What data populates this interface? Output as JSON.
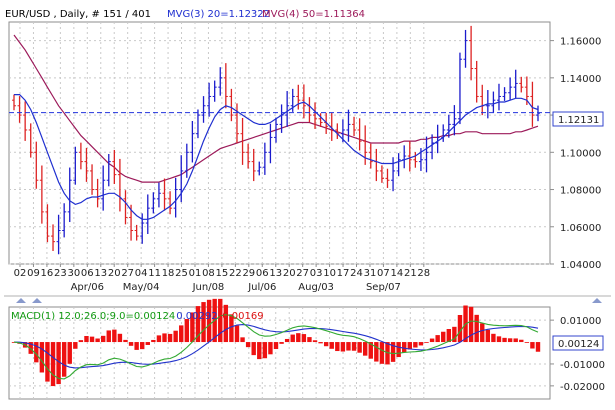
{
  "colors": {
    "up_bar": "#1b1bcc",
    "down_bar": "#dd2222",
    "mvg3": "#1f2fd0",
    "mvg4": "#9c1a5a",
    "current_line": "#2233dd",
    "macd_line": "#33aa33",
    "signal_line": "#2233cc",
    "histogram": "#ee1111",
    "frame": "#8e8e8e",
    "panel_border": "#3344cc"
  },
  "chart_data": [
    {
      "type": "ohlc",
      "title": {
        "symbol": "EUR/USD , Daily, # 151 / 401",
        "mvg3": "MVG(3) 20=1.12322",
        "mvg4": "MVG(4) 50=1.11364"
      },
      "ylim": [
        1.04,
        1.17
      ],
      "y_ticks": [
        "1.16000",
        "1.14000",
        "1.12000",
        "1.10000",
        "1.08000",
        "1.06000",
        "1.04000"
      ],
      "y_tick_values": [
        1.16,
        1.14,
        1.12,
        1.1,
        1.08,
        1.06,
        1.04
      ],
      "current_value_label": "1.12131",
      "current_value": 1.12131,
      "day_labels": [
        "02",
        "09",
        "16",
        "23",
        "30",
        "06",
        "13",
        "20",
        "27",
        "04",
        "11",
        "18",
        "25",
        "01",
        "08",
        "15",
        "22",
        "29",
        "06",
        "13",
        "20",
        "27",
        "03",
        "10",
        "17",
        "24",
        "31",
        "07",
        "14",
        "21",
        "28"
      ],
      "month_labels": [
        {
          "label": "Apr/06",
          "day_index": 5
        },
        {
          "label": "May/04",
          "day_index": 9
        },
        {
          "label": "Jun/08",
          "day_index": 14
        },
        {
          "label": "Jul/06",
          "day_index": 18
        },
        {
          "label": "Aug/03",
          "day_index": 22
        },
        {
          "label": "Sep/07",
          "day_index": 27
        }
      ],
      "close": [
        1.125,
        1.12,
        1.112,
        1.1,
        1.085,
        1.068,
        1.055,
        1.052,
        1.058,
        1.068,
        1.085,
        1.1,
        1.095,
        1.09,
        1.08,
        1.075,
        1.085,
        1.095,
        1.088,
        1.075,
        1.065,
        1.058,
        1.055,
        1.062,
        1.07,
        1.075,
        1.078,
        1.075,
        1.07,
        1.08,
        1.09,
        1.1,
        1.11,
        1.12,
        1.125,
        1.13,
        1.135,
        1.14,
        1.13,
        1.12,
        1.11,
        1.1,
        1.095,
        1.09,
        1.092,
        1.1,
        1.108,
        1.115,
        1.12,
        1.125,
        1.13,
        1.128,
        1.125,
        1.12,
        1.118,
        1.116,
        1.114,
        1.112,
        1.11,
        1.112,
        1.115,
        1.112,
        1.106,
        1.1,
        1.095,
        1.09,
        1.086,
        1.085,
        1.09,
        1.096,
        1.098,
        1.096,
        1.095,
        1.096,
        1.1,
        1.105,
        1.108,
        1.112,
        1.115,
        1.118,
        1.15,
        1.16,
        1.145,
        1.13,
        1.125,
        1.125,
        1.128,
        1.13,
        1.132,
        1.135,
        1.137,
        1.135,
        1.13,
        1.12,
        1.121
      ],
      "mvg3_20": [
        1.131,
        1.131,
        1.128,
        1.123,
        1.116,
        1.108,
        1.1,
        1.092,
        1.084,
        1.078,
        1.074,
        1.072,
        1.073,
        1.075,
        1.076,
        1.076,
        1.077,
        1.078,
        1.078,
        1.076,
        1.073,
        1.069,
        1.066,
        1.064,
        1.064,
        1.065,
        1.067,
        1.069,
        1.071,
        1.074,
        1.078,
        1.083,
        1.09,
        1.098,
        1.106,
        1.113,
        1.119,
        1.123,
        1.125,
        1.124,
        1.122,
        1.12,
        1.118,
        1.116,
        1.115,
        1.115,
        1.116,
        1.118,
        1.12,
        1.122,
        1.124,
        1.126,
        1.127,
        1.125,
        1.122,
        1.119,
        1.116,
        1.113,
        1.11,
        1.107,
        1.104,
        1.101,
        1.099,
        1.097,
        1.096,
        1.095,
        1.094,
        1.094,
        1.094,
        1.095,
        1.096,
        1.097,
        1.098,
        1.1,
        1.102,
        1.104,
        1.106,
        1.108,
        1.111,
        1.114,
        1.117,
        1.12,
        1.122,
        1.124,
        1.125,
        1.126,
        1.126,
        1.127,
        1.127,
        1.128,
        1.129,
        1.129,
        1.128,
        1.124,
        1.123
      ],
      "mvg4_50": [
        1.163,
        1.159,
        1.155,
        1.15,
        1.145,
        1.14,
        1.135,
        1.13,
        1.125,
        1.121,
        1.117,
        1.113,
        1.109,
        1.106,
        1.103,
        1.1,
        1.097,
        1.094,
        1.092,
        1.089,
        1.087,
        1.086,
        1.085,
        1.084,
        1.084,
        1.084,
        1.084,
        1.085,
        1.086,
        1.087,
        1.088,
        1.09,
        1.092,
        1.094,
        1.096,
        1.098,
        1.1,
        1.102,
        1.103,
        1.104,
        1.105,
        1.106,
        1.107,
        1.108,
        1.109,
        1.11,
        1.111,
        1.112,
        1.113,
        1.114,
        1.115,
        1.116,
        1.116,
        1.116,
        1.115,
        1.114,
        1.113,
        1.112,
        1.111,
        1.11,
        1.109,
        1.108,
        1.107,
        1.106,
        1.105,
        1.105,
        1.105,
        1.105,
        1.105,
        1.105,
        1.106,
        1.106,
        1.106,
        1.107,
        1.107,
        1.108,
        1.108,
        1.109,
        1.109,
        1.11,
        1.11,
        1.111,
        1.111,
        1.111,
        1.11,
        1.11,
        1.11,
        1.11,
        1.11,
        1.11,
        1.111,
        1.111,
        1.112,
        1.113,
        1.114
      ]
    },
    {
      "type": "macd",
      "title": {
        "macd": "MACD(1) 12.0;26.0;9.0=0.00124",
        "signal": "0.00292",
        "hist": "-0.00169"
      },
      "ylim": [
        -0.026,
        0.016
      ],
      "y_ticks": [
        "0.01000",
        "-0.01000",
        "-0.02000"
      ],
      "y_tick_values": [
        0.01,
        -0.01,
        -0.02
      ],
      "current_value_label": "0.00124",
      "current_value": 0.00124
    }
  ]
}
